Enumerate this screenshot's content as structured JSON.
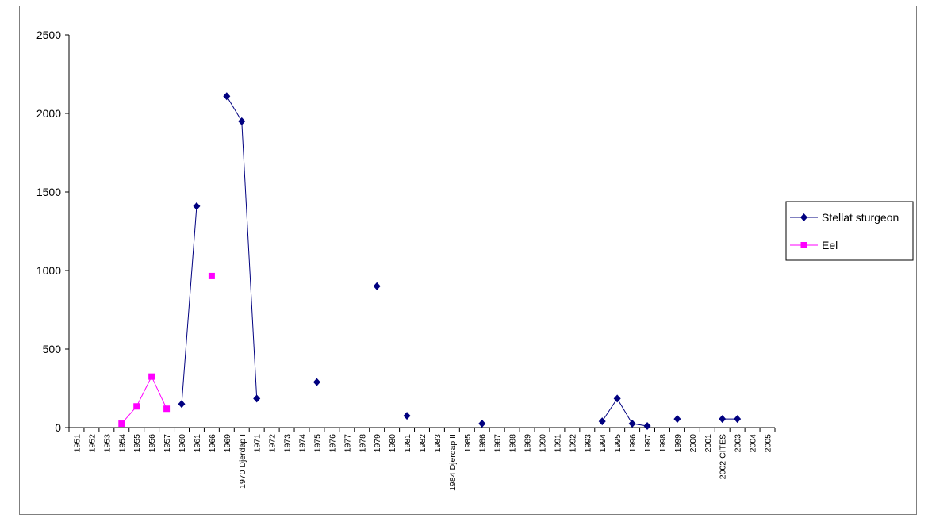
{
  "chart_data": {
    "type": "line",
    "title": "",
    "xlabel": "",
    "ylabel": "",
    "ylim": [
      0,
      2500
    ],
    "yticks": [
      0,
      500,
      1000,
      1500,
      2000,
      2500
    ],
    "grid": false,
    "legend_position": "right",
    "categories": [
      "1951",
      "1952",
      "1953",
      "1954",
      "1955",
      "1956",
      "1957",
      "1960",
      "1961",
      "1966",
      "1969",
      "1970 Djerdap I",
      "1971",
      "1972",
      "1973",
      "1974",
      "1975",
      "1976",
      "1977",
      "1978",
      "1979",
      "1980",
      "1981",
      "1982",
      "1983",
      "1984 Djerdap II",
      "1985",
      "1986",
      "1987",
      "1988",
      "1989",
      "1990",
      "1991",
      "1992",
      "1993",
      "1994",
      "1995",
      "1996",
      "1997",
      "1998",
      "1999",
      "2000",
      "2001",
      "2002 CITES",
      "2003",
      "2004",
      "2005"
    ],
    "series": [
      {
        "name": "Stellat sturgeon",
        "color": "#000080",
        "marker": "diamond",
        "values": [
          null,
          null,
          null,
          null,
          null,
          null,
          null,
          150,
          1410,
          null,
          2110,
          1950,
          185,
          null,
          null,
          null,
          290,
          null,
          null,
          null,
          900,
          null,
          75,
          null,
          null,
          null,
          null,
          25,
          null,
          null,
          null,
          null,
          null,
          null,
          null,
          40,
          185,
          25,
          10,
          null,
          55,
          null,
          null,
          55,
          55,
          null,
          null
        ]
      },
      {
        "name": "Eel",
        "color": "#ff00ff",
        "marker": "square",
        "values": [
          null,
          null,
          null,
          25,
          135,
          325,
          120,
          null,
          null,
          965,
          null,
          null,
          null,
          null,
          null,
          null,
          null,
          null,
          null,
          null,
          null,
          null,
          null,
          null,
          null,
          null,
          null,
          null,
          null,
          null,
          null,
          null,
          null,
          null,
          null,
          null,
          null,
          null,
          null,
          null,
          null,
          null,
          null,
          null,
          null,
          null,
          null
        ]
      }
    ]
  }
}
